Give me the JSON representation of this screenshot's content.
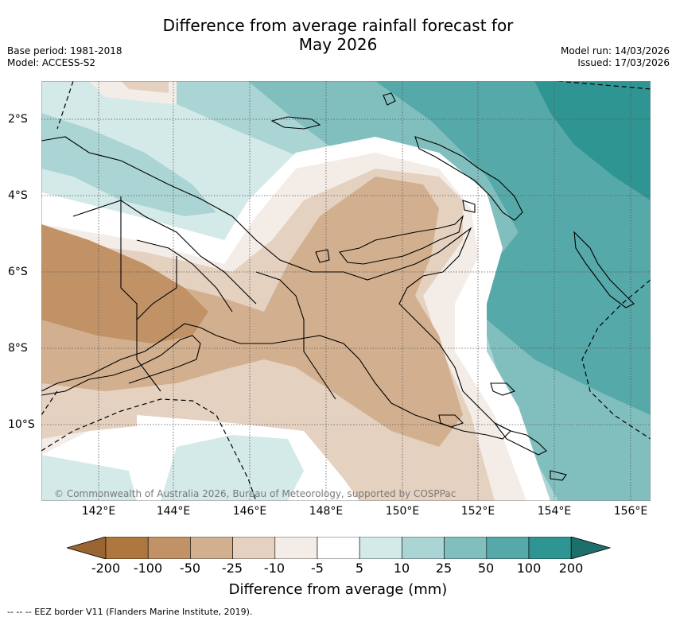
{
  "title_line1": "Difference from average rainfall forecast for",
  "title_line2": "May 2026",
  "base_period": "Base period: 1981-2018",
  "model": "Model: ACCESS-S2",
  "model_run": "Model run: 14/03/2026",
  "issued": "Issued: 17/03/2026",
  "x_ticks": [
    "142°E",
    "144°E",
    "146°E",
    "148°E",
    "150°E",
    "152°E",
    "154°E",
    "156°E"
  ],
  "y_ticks": [
    "2°S",
    "4°S",
    "6°S",
    "8°S",
    "10°S"
  ],
  "copyright": "© Commonwealth of Australia 2026, Bureau of Meteorology, supported by COSPPac",
  "colorbar": {
    "title": "Difference from average (mm)",
    "labels": [
      "-200",
      "-100",
      "-50",
      "-25",
      "-10",
      "-5",
      "5",
      "10",
      "25",
      "50",
      "100",
      "200"
    ],
    "colors": [
      "#9a6433",
      "#ae773f",
      "#c09266",
      "#d2b08f",
      "#e5d1c0",
      "#f4ede7",
      "#ffffff",
      "#d4eae9",
      "#abd5d4",
      "#81bfbe",
      "#55a9a8",
      "#2e9592",
      "#1d6f6c"
    ]
  },
  "footnote": "--  --  -- EEZ border V11 (Flanders Marine Institute, 2019).",
  "chart_data": {
    "type": "map",
    "variable": "Difference from average rainfall (mm)",
    "period": "May 2026",
    "lon_range": [
      140.5,
      156.5
    ],
    "lat_range": [
      -11.5,
      -1.0
    ],
    "levels": [
      -200,
      -100,
      -50,
      -25,
      -10,
      -5,
      5,
      10,
      25,
      50,
      100,
      200
    ]
  }
}
